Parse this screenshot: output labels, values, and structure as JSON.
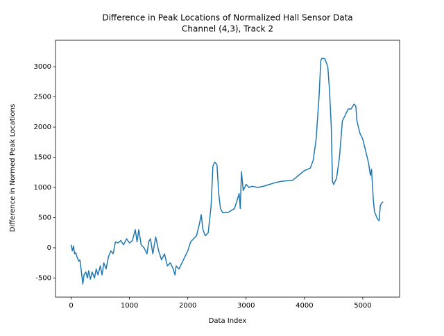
{
  "chart_data": {
    "type": "line",
    "title": "Difference in Peak Locations of Normalized Hall Sensor Data",
    "subtitle": "Channel (4,3), Track 2",
    "x_label": "Data Index",
    "y_label": "Difference in Normed Peak Locations",
    "x": [
      0,
      20,
      40,
      60,
      80,
      100,
      130,
      150,
      170,
      200,
      220,
      250,
      280,
      300,
      330,
      360,
      400,
      430,
      460,
      500,
      530,
      560,
      600,
      640,
      680,
      720,
      760,
      800,
      850,
      900,
      950,
      1000,
      1050,
      1100,
      1130,
      1160,
      1200,
      1250,
      1300,
      1330,
      1360,
      1400,
      1450,
      1500,
      1550,
      1600,
      1650,
      1700,
      1750,
      1780,
      1800,
      1850,
      1900,
      1950,
      2000,
      2050,
      2100,
      2150,
      2200,
      2230,
      2260,
      2300,
      2350,
      2400,
      2430,
      2460,
      2500,
      2530,
      2560,
      2600,
      2700,
      2800,
      2850,
      2880,
      2900,
      2920,
      2950,
      3000,
      3050,
      3100,
      3200,
      3300,
      3400,
      3500,
      3600,
      3700,
      3800,
      3900,
      4000,
      4100,
      4150,
      4200,
      4250,
      4280,
      4300,
      4350,
      4400,
      4430,
      4460,
      4480,
      4500,
      4550,
      4600,
      4650,
      4700,
      4750,
      4800,
      4850,
      4880,
      4900,
      4950,
      5000,
      5050,
      5100,
      5130,
      5150,
      5180,
      5200,
      5250,
      5280,
      5300,
      5330,
      5350
    ],
    "values": [
      50,
      -50,
      30,
      -100,
      -80,
      -150,
      -220,
      -200,
      -350,
      -600,
      -450,
      -400,
      -500,
      -380,
      -520,
      -400,
      -500,
      -350,
      -450,
      -300,
      -450,
      -250,
      -350,
      -150,
      -50,
      -100,
      100,
      80,
      120,
      50,
      150,
      80,
      120,
      300,
      100,
      300,
      50,
      0,
      -100,
      100,
      150,
      -100,
      180,
      -50,
      -200,
      -100,
      -300,
      -250,
      -350,
      -450,
      -300,
      -350,
      -250,
      -150,
      -50,
      100,
      150,
      200,
      400,
      550,
      300,
      200,
      250,
      700,
      1350,
      1420,
      1380,
      900,
      650,
      580,
      590,
      650,
      800,
      900,
      650,
      1260,
      950,
      1050,
      1000,
      1020,
      1000,
      1020,
      1050,
      1080,
      1100,
      1110,
      1120,
      1200,
      1280,
      1320,
      1450,
      1800,
      2500,
      3100,
      3140,
      3130,
      3000,
      2600,
      2000,
      1100,
      1050,
      1150,
      1500,
      2100,
      2200,
      2300,
      2300,
      2380,
      2350,
      2100,
      1900,
      1800,
      1600,
      1400,
      1200,
      1300,
      800,
      600,
      480,
      450,
      700,
      750,
      760
    ],
    "color": "#1f77b4",
    "xlim": [
      -268,
      5631
    ],
    "ylim": [
      -817,
      3438
    ],
    "xticks": [
      0,
      1000,
      2000,
      3000,
      4000,
      5000
    ],
    "yticks": [
      -500,
      0,
      500,
      1000,
      1500,
      2000,
      2500,
      3000
    ]
  }
}
